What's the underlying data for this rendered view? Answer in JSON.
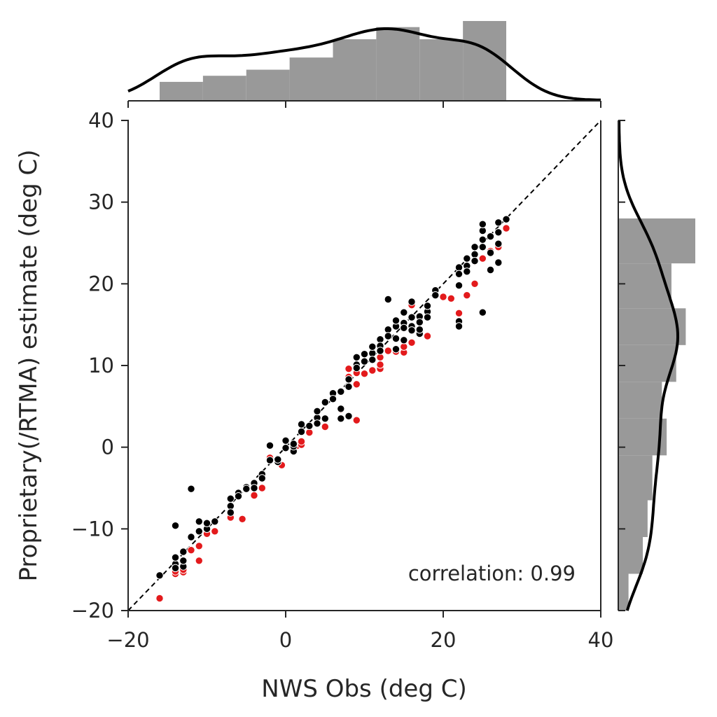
{
  "chart_data": {
    "type": "scatter",
    "title": "",
    "xlabel": "NWS Obs (deg C)",
    "ylabel": "Proprietary(/RTMA) estimate (deg C)",
    "xlim": [
      -20,
      40
    ],
    "ylim": [
      -20,
      40
    ],
    "xticks": [
      -20,
      0,
      20,
      40
    ],
    "yticks": [
      -20,
      -10,
      0,
      10,
      20,
      30,
      40
    ],
    "xtick_labels": [
      "−20",
      "0",
      "20",
      "40"
    ],
    "ytick_labels": [
      "−20",
      "−10",
      "0",
      "10",
      "20",
      "30",
      "40"
    ],
    "grid": false,
    "legend": "none",
    "annotation": "correlation: 0.99",
    "reference_line": {
      "style": "dashed",
      "from": [
        -20,
        -20
      ],
      "to": [
        40,
        40
      ]
    },
    "colors": {
      "series_a": "#000000",
      "series_b": "#e31a1c",
      "marginal": "#999999",
      "kde": "#000000"
    },
    "series": [
      {
        "color": "#e31a1c",
        "points": [
          [
            -16,
            -18.5
          ],
          [
            -14,
            -15.5
          ],
          [
            -14,
            -15.2
          ],
          [
            -13,
            -15.3
          ],
          [
            -13,
            -15
          ],
          [
            -12,
            -12.6
          ],
          [
            -11,
            -12.1
          ],
          [
            -11,
            -13.9
          ],
          [
            -10,
            -10.6
          ],
          [
            -9,
            -10.3
          ],
          [
            -7,
            -8.6
          ],
          [
            -5.5,
            -8.8
          ],
          [
            -4,
            -5.9
          ],
          [
            -3,
            -5
          ],
          [
            -2,
            -1.3
          ],
          [
            -0.5,
            -2.2
          ],
          [
            1,
            -0.3
          ],
          [
            1.5,
            0.2
          ],
          [
            2,
            0.3
          ],
          [
            2,
            0.7
          ],
          [
            3,
            1.8
          ],
          [
            5,
            2.5
          ],
          [
            7,
            4.6
          ],
          [
            9,
            3.3
          ],
          [
            8,
            9.6
          ],
          [
            8,
            8.6
          ],
          [
            9,
            9.1
          ],
          [
            9,
            7.7
          ],
          [
            10,
            9
          ],
          [
            11,
            9.4
          ],
          [
            12,
            9.6
          ],
          [
            12,
            10.1
          ],
          [
            12,
            11
          ],
          [
            13,
            11.8
          ],
          [
            14,
            11.7
          ],
          [
            15,
            11.6
          ],
          [
            15,
            12.3
          ],
          [
            16,
            12.8
          ],
          [
            18,
            13.6
          ],
          [
            16,
            17.4
          ],
          [
            20,
            18.4
          ],
          [
            21,
            18.2
          ],
          [
            22,
            16.4
          ],
          [
            23,
            18.6
          ],
          [
            24,
            20
          ],
          [
            23,
            21.5
          ],
          [
            24,
            22.7
          ],
          [
            25,
            23.1
          ],
          [
            26,
            24
          ],
          [
            27,
            24.5
          ],
          [
            28,
            26.8
          ]
        ]
      },
      {
        "color": "#000000",
        "points": [
          [
            -16,
            -15.7
          ],
          [
            -14,
            -14.3
          ],
          [
            -14,
            -14.8
          ],
          [
            -14,
            -13.5
          ],
          [
            -13,
            -14.6
          ],
          [
            -13,
            -12.8
          ],
          [
            -13,
            -13.9
          ],
          [
            -12,
            -11
          ],
          [
            -12,
            -5.1
          ],
          [
            -14,
            -9.6
          ],
          [
            -11,
            -10.3
          ],
          [
            -11,
            -9.1
          ],
          [
            -10,
            -10
          ],
          [
            -10,
            -9.3
          ],
          [
            -9,
            -9.1
          ],
          [
            -7,
            -6.3
          ],
          [
            -7,
            -7.2
          ],
          [
            -7,
            -8
          ],
          [
            -6,
            -5.6
          ],
          [
            -6,
            -6
          ],
          [
            -5,
            -4.9
          ],
          [
            -5,
            -5.1
          ],
          [
            -4,
            -4.4
          ],
          [
            -4,
            -5
          ],
          [
            -3,
            -3.3
          ],
          [
            -3,
            -3.8
          ],
          [
            -2,
            -1.6
          ],
          [
            -2,
            0.2
          ],
          [
            -1,
            -1.8
          ],
          [
            -1,
            -1.5
          ],
          [
            0,
            -0.1
          ],
          [
            0,
            0.8
          ],
          [
            1,
            -0.5
          ],
          [
            1,
            0.1
          ],
          [
            1,
            0.4
          ],
          [
            2,
            1.9
          ],
          [
            2,
            2.8
          ],
          [
            3,
            2.6
          ],
          [
            4,
            3.6
          ],
          [
            4,
            4.4
          ],
          [
            4,
            2.9
          ],
          [
            5,
            5.5
          ],
          [
            5,
            3.5
          ],
          [
            6,
            6.6
          ],
          [
            6,
            5.9
          ],
          [
            7,
            4.7
          ],
          [
            7,
            3.5
          ],
          [
            7,
            6.8
          ],
          [
            8,
            8.3
          ],
          [
            8,
            7.4
          ],
          [
            8,
            3.8
          ],
          [
            9,
            10.1
          ],
          [
            9,
            11
          ],
          [
            9,
            9.7
          ],
          [
            10,
            10.5
          ],
          [
            10,
            11.4
          ],
          [
            11,
            11.5
          ],
          [
            11,
            10.7
          ],
          [
            11,
            12.3
          ],
          [
            12,
            13.2
          ],
          [
            12,
            12.4
          ],
          [
            12,
            11.8
          ],
          [
            13,
            14.4
          ],
          [
            13,
            13.6
          ],
          [
            13,
            18.1
          ],
          [
            14,
            14.8
          ],
          [
            14,
            15.5
          ],
          [
            14,
            13.3
          ],
          [
            14,
            12
          ],
          [
            15,
            16.5
          ],
          [
            15,
            15.2
          ],
          [
            15,
            14.6
          ],
          [
            15,
            13.1
          ],
          [
            16,
            15.9
          ],
          [
            16,
            14.8
          ],
          [
            16,
            14.3
          ],
          [
            16,
            17.8
          ],
          [
            17,
            16
          ],
          [
            17,
            15.3
          ],
          [
            17,
            13.9
          ],
          [
            17,
            14.4
          ],
          [
            18,
            16.6
          ],
          [
            18,
            15.9
          ],
          [
            18,
            17.3
          ],
          [
            19,
            19.2
          ],
          [
            19,
            18.6
          ],
          [
            22,
            22
          ],
          [
            22,
            19.8
          ],
          [
            22,
            21.2
          ],
          [
            22,
            15.4
          ],
          [
            22,
            14.8
          ],
          [
            23,
            23.1
          ],
          [
            23,
            22.2
          ],
          [
            23,
            21.5
          ],
          [
            24,
            24.5
          ],
          [
            24,
            23.6
          ],
          [
            24,
            22.8
          ],
          [
            25,
            26.5
          ],
          [
            25,
            25.4
          ],
          [
            25,
            27.3
          ],
          [
            25,
            24.5
          ],
          [
            25,
            16.5
          ],
          [
            26,
            25.8
          ],
          [
            26,
            23.8
          ],
          [
            26,
            21.7
          ],
          [
            27,
            27.5
          ],
          [
            27,
            26.3
          ],
          [
            27,
            24.9
          ],
          [
            27,
            22.6
          ],
          [
            28,
            27.9
          ]
        ]
      }
    ],
    "marginal_x": {
      "bin_edges": [
        -16,
        -10.5,
        -5,
        0.5,
        6,
        11.5,
        17,
        22.5,
        28
      ],
      "counts": [
        3,
        4,
        5,
        7,
        10,
        12,
        10,
        13
      ]
    },
    "marginal_y": {
      "bin_edges": [
        -20,
        -15.5,
        -11,
        -6.5,
        -1,
        3.5,
        8,
        12.5,
        17,
        22.5,
        28
      ],
      "counts": [
        2,
        5,
        6,
        7,
        10,
        9,
        12,
        14,
        11,
        16
      ]
    }
  }
}
